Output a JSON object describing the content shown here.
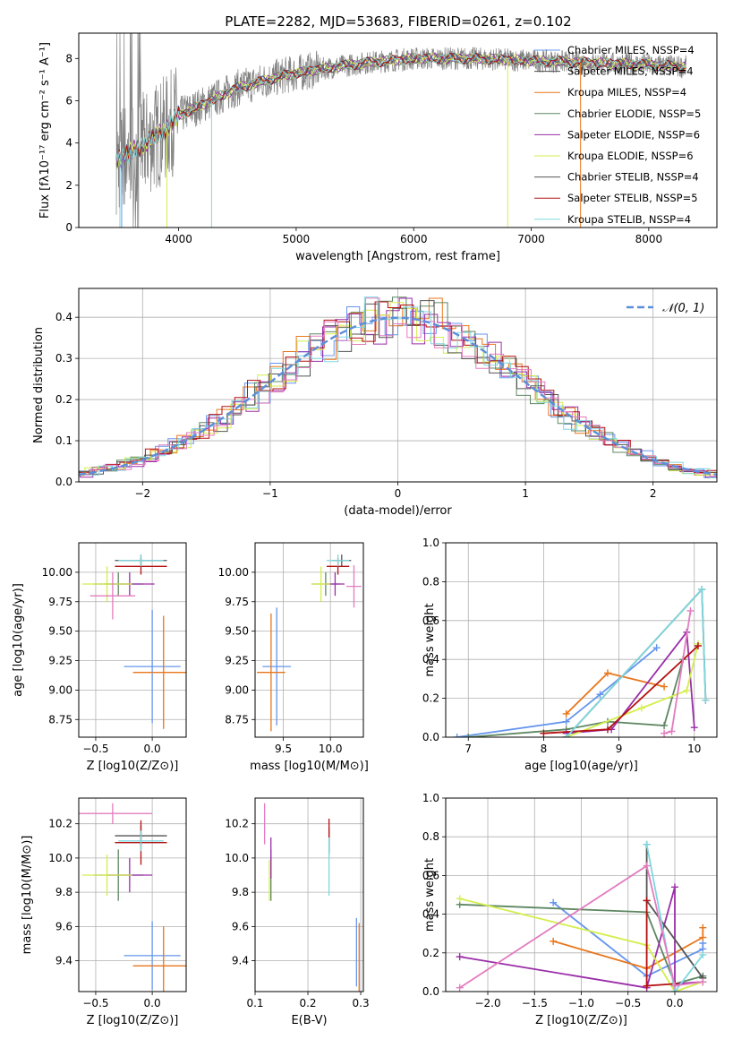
{
  "figure_title": "PLATE=2282, MJD=53683, FIBERID=0261, z=0.102",
  "colors": {
    "chabrier_miles": "#6495ed",
    "salpeter_miles": "#4a4a4a",
    "kroupa_miles": "#e8761c",
    "chabrier_elodie": "#5e8762",
    "salpeter_elodie": "#9a2ea8",
    "kroupa_elodie": "#d4ee4e",
    "chabrier_stelib": "#555555",
    "salpeter_stelib": "#b41010",
    "kroupa_stelib": "#7fd8df",
    "pink": "#e37cbf",
    "data_gray": "#808080",
    "normal_curve": "#5b8fd9"
  },
  "chart_data": [
    {
      "id": "spectrum",
      "type": "line",
      "xlabel": "wavelength [Angstrom, rest frame]",
      "ylabel": "Flux [fλ10⁻¹⁷ erg cm⁻² s⁻¹ A⁻¹]",
      "xlim": [
        3150,
        8580
      ],
      "ylim": [
        0,
        9.2
      ],
      "xticks": [
        "4000",
        "5000",
        "6000",
        "7000",
        "8000"
      ],
      "yticks": [
        "0",
        "2",
        "4",
        "6",
        "8"
      ],
      "xrange": [
        3470,
        8320
      ],
      "continuum": {
        "x": [
          3470,
          3700,
          3900,
          4000,
          4200,
          4500,
          4900,
          5200,
          5600,
          6000,
          6500,
          7000,
          7500,
          8000,
          8320
        ],
        "y": [
          3.2,
          3.9,
          4.7,
          5.3,
          5.8,
          6.6,
          7.2,
          7.5,
          7.8,
          8.0,
          8.0,
          7.9,
          7.8,
          7.7,
          7.6
        ]
      },
      "legend": [
        {
          "label": "Chabrier MILES, NSSP=4",
          "color_key": "chabrier_miles"
        },
        {
          "label": "Salpeter MILES, NSSP=4",
          "color_key": "salpeter_miles"
        },
        {
          "label": "Kroupa MILES, NSSP=4",
          "color_key": "kroupa_miles"
        },
        {
          "label": "Chabrier ELODIE, NSSP=5",
          "color_key": "chabrier_elodie"
        },
        {
          "label": "Salpeter ELODIE, NSSP=6",
          "color_key": "salpeter_elodie"
        },
        {
          "label": "Kroupa ELODIE, NSSP=6",
          "color_key": "kroupa_elodie"
        },
        {
          "label": "Chabrier STELIB, NSSP=4",
          "color_key": "chabrier_stelib"
        },
        {
          "label": "Salpeter STELIB, NSSP=5",
          "color_key": "salpeter_stelib"
        },
        {
          "label": "Kroupa STELIB, NSSP=4",
          "color_key": "kroupa_stelib"
        }
      ],
      "legend_placement": "right"
    },
    {
      "id": "residual-histogram",
      "type": "line",
      "xlabel": "(data-model)/error",
      "ylabel": "Normed distribution",
      "xlim": [
        -2.5,
        2.5
      ],
      "ylim": [
        0,
        0.47
      ],
      "xticks": [
        "-2",
        "-1",
        "0",
        "1",
        "2"
      ],
      "yticks": [
        "0.0",
        "0.1",
        "0.2",
        "0.3",
        "0.4"
      ],
      "grid": true,
      "legend": [
        {
          "label": "𝒩(0, 1)",
          "color_key": "normal_curve"
        }
      ],
      "legend_placement": "top-right",
      "series_colors": [
        "chabrier_miles",
        "kroupa_miles",
        "chabrier_elodie",
        "salpeter_elodie",
        "kroupa_elodie",
        "chabrier_stelib",
        "salpeter_stelib",
        "kroupa_stelib",
        "pink"
      ]
    },
    {
      "id": "age-vs-Z",
      "type": "scatter",
      "xlabel": "Z [log10(Z/Z⊙)]",
      "ylabel": "age  [log10(age/yr)]",
      "xlim": [
        -0.65,
        0.3
      ],
      "ylim": [
        8.6,
        10.25
      ],
      "xticks": [
        "-0.5",
        "0.0"
      ],
      "yticks": [
        "8.75",
        "9.00",
        "9.25",
        "9.50",
        "9.75",
        "10.00"
      ],
      "grid": true,
      "points": [
        {
          "x": 0.0,
          "y": 9.2,
          "xerr": 0.25,
          "yerr": 0.48,
          "color_key": "chabrier_miles"
        },
        {
          "x": 0.1,
          "y": 9.15,
          "xerr": 0.27,
          "yerr": 0.48,
          "color_key": "kroupa_miles"
        },
        {
          "x": -0.3,
          "y": 9.9,
          "xerr": 0.22,
          "yerr": 0.1,
          "color_key": "chabrier_elodie"
        },
        {
          "x": -0.2,
          "y": 9.9,
          "xerr": 0.22,
          "yerr": 0.1,
          "color_key": "salpeter_elodie"
        },
        {
          "x": -0.4,
          "y": 9.9,
          "xerr": 0.22,
          "yerr": 0.15,
          "color_key": "kroupa_elodie"
        },
        {
          "x": -0.1,
          "y": 10.1,
          "xerr": 0.23,
          "yerr": 0.05,
          "color_key": "chabrier_stelib"
        },
        {
          "x": -0.1,
          "y": 10.05,
          "xerr": 0.23,
          "yerr": 0.07,
          "color_key": "salpeter_stelib"
        },
        {
          "x": -0.1,
          "y": 10.1,
          "xerr": 0.2,
          "yerr": 0.05,
          "color_key": "kroupa_stelib"
        },
        {
          "x": -0.35,
          "y": 9.8,
          "xerr": 0.2,
          "yerr": 0.2,
          "color_key": "pink"
        }
      ]
    },
    {
      "id": "age-vs-mass",
      "type": "scatter",
      "xlabel": "mass [log10(M/M⊙)]",
      "ylabel": "",
      "xlim": [
        9.2,
        10.35
      ],
      "ylim": [
        8.6,
        10.25
      ],
      "xticks": [
        "9.5",
        "10.0"
      ],
      "yticks": [
        "8.75",
        "9.00",
        "9.25",
        "9.50",
        "9.75",
        "10.00"
      ],
      "grid": true,
      "points": [
        {
          "x": 9.43,
          "y": 9.2,
          "xerr": 0.15,
          "yerr": 0.5,
          "color_key": "chabrier_miles"
        },
        {
          "x": 9.37,
          "y": 9.15,
          "xerr": 0.15,
          "yerr": 0.5,
          "color_key": "kroupa_miles"
        },
        {
          "x": 9.95,
          "y": 9.9,
          "xerr": 0.15,
          "yerr": 0.1,
          "color_key": "chabrier_elodie"
        },
        {
          "x": 10.05,
          "y": 9.9,
          "xerr": 0.1,
          "yerr": 0.1,
          "color_key": "salpeter_elodie"
        },
        {
          "x": 9.9,
          "y": 9.9,
          "xerr": 0.1,
          "yerr": 0.15,
          "color_key": "kroupa_elodie"
        },
        {
          "x": 10.12,
          "y": 10.1,
          "xerr": 0.1,
          "yerr": 0.05,
          "color_key": "chabrier_stelib"
        },
        {
          "x": 10.08,
          "y": 10.05,
          "xerr": 0.12,
          "yerr": 0.07,
          "color_key": "salpeter_stelib"
        },
        {
          "x": 10.08,
          "y": 10.1,
          "xerr": 0.12,
          "yerr": 0.05,
          "color_key": "kroupa_stelib"
        },
        {
          "x": 10.25,
          "y": 9.88,
          "xerr": 0.08,
          "yerr": 0.18,
          "color_key": "pink"
        }
      ]
    },
    {
      "id": "mass-weight-vs-age",
      "type": "line",
      "xlabel": "age  [log10(age/yr)]",
      "ylabel": "mass weight",
      "xlim": [
        6.7,
        10.3
      ],
      "ylim": [
        0,
        1.0
      ],
      "xticks": [
        "7",
        "8",
        "9",
        "10"
      ],
      "yticks": [
        "0.0",
        "0.2",
        "0.4",
        "0.6",
        "0.8",
        "1.0"
      ],
      "grid": true,
      "series": [
        {
          "color_key": "chabrier_miles",
          "x": [
            6.85,
            8.3,
            8.75,
            9.5
          ],
          "y": [
            0.0,
            0.08,
            0.22,
            0.46
          ]
        },
        {
          "color_key": "kroupa_miles",
          "x": [
            8.3,
            8.85,
            9.6
          ],
          "y": [
            0.12,
            0.33,
            0.26
          ]
        },
        {
          "color_key": "chabrier_elodie",
          "x": [
            7.0,
            8.3,
            8.85,
            9.6,
            9.85
          ],
          "y": [
            0.0,
            0.04,
            0.08,
            0.06,
            0.4
          ]
        },
        {
          "color_key": "salpeter_elodie",
          "x": [
            8.3,
            8.9,
            9.9,
            10.0
          ],
          "y": [
            0.02,
            0.04,
            0.54,
            0.05
          ]
        },
        {
          "color_key": "kroupa_elodie",
          "x": [
            8.3,
            9.3,
            9.9,
            10.05
          ],
          "y": [
            0.0,
            0.15,
            0.24,
            0.48
          ]
        },
        {
          "color_key": "chabrier_stelib",
          "x": [
            8.3,
            10.1,
            10.15
          ],
          "y": [
            0.0,
            0.76,
            0.19
          ]
        },
        {
          "color_key": "salpeter_stelib",
          "x": [
            8.0,
            8.85,
            10.05
          ],
          "y": [
            0.02,
            0.04,
            0.47
          ]
        },
        {
          "color_key": "kroupa_stelib",
          "x": [
            8.3,
            10.1,
            10.15
          ],
          "y": [
            0.0,
            0.76,
            0.19
          ]
        },
        {
          "color_key": "pink",
          "x": [
            9.6,
            9.7,
            9.95
          ],
          "y": [
            0.02,
            0.03,
            0.65
          ]
        }
      ]
    },
    {
      "id": "mass-vs-Z",
      "type": "scatter",
      "xlabel": "Z [log10(Z/Z⊙)]",
      "ylabel": "mass [log10(M/M⊙)]",
      "xlim": [
        -0.65,
        0.3
      ],
      "ylim": [
        9.22,
        10.35
      ],
      "xticks": [
        "-0.5",
        "0.0"
      ],
      "yticks": [
        "9.4",
        "9.6",
        "9.8",
        "10.0",
        "10.2"
      ],
      "grid": true,
      "points": [
        {
          "x": 0.0,
          "y": 9.43,
          "xerr": 0.25,
          "yerr": 0.2,
          "color_key": "chabrier_miles"
        },
        {
          "x": 0.1,
          "y": 9.37,
          "xerr": 0.27,
          "yerr": 0.23,
          "color_key": "kroupa_miles"
        },
        {
          "x": -0.3,
          "y": 9.9,
          "xerr": 0.22,
          "yerr": 0.15,
          "color_key": "chabrier_elodie"
        },
        {
          "x": -0.2,
          "y": 9.9,
          "xerr": 0.2,
          "yerr": 0.1,
          "color_key": "salpeter_elodie"
        },
        {
          "x": -0.4,
          "y": 9.9,
          "xerr": 0.22,
          "yerr": 0.12,
          "color_key": "kroupa_elodie"
        },
        {
          "x": -0.1,
          "y": 10.13,
          "xerr": 0.23,
          "yerr": 0.06,
          "color_key": "chabrier_stelib"
        },
        {
          "x": -0.1,
          "y": 10.09,
          "xerr": 0.23,
          "yerr": 0.13,
          "color_key": "salpeter_stelib"
        },
        {
          "x": -0.1,
          "y": 10.1,
          "xerr": 0.2,
          "yerr": 0.06,
          "color_key": "kroupa_stelib"
        },
        {
          "x": -0.35,
          "y": 10.26,
          "xerr": 0.35,
          "yerr": 0.06,
          "color_key": "pink"
        }
      ]
    },
    {
      "id": "mass-vs-ebv",
      "type": "scatter",
      "xlabel": "E(B-V)",
      "ylabel": "",
      "xlim": [
        0.1,
        0.305
      ],
      "ylim": [
        9.22,
        10.35
      ],
      "xticks": [
        "0.1",
        "0.2",
        "0.3"
      ],
      "yticks": [
        "9.4",
        "9.6",
        "9.8",
        "10.0",
        "10.2"
      ],
      "grid": true,
      "points": [
        {
          "x": 0.292,
          "y": 9.45,
          "yerr": 0.2,
          "color_key": "chabrier_miles"
        },
        {
          "x": 0.297,
          "y": 9.42,
          "yerr": 0.2,
          "color_key": "kroupa_miles"
        },
        {
          "x": 0.13,
          "y": 9.9,
          "yerr": 0.15,
          "color_key": "chabrier_elodie"
        },
        {
          "x": 0.13,
          "y": 10.0,
          "yerr": 0.12,
          "color_key": "salpeter_elodie"
        },
        {
          "x": 0.127,
          "y": 9.87,
          "yerr": 0.12,
          "color_key": "kroupa_elodie"
        },
        {
          "x": 0.24,
          "y": 10.1,
          "yerr": 0.08,
          "color_key": "chabrier_stelib"
        },
        {
          "x": 0.24,
          "y": 10.13,
          "yerr": 0.1,
          "color_key": "salpeter_stelib"
        },
        {
          "x": 0.24,
          "y": 9.95,
          "yerr": 0.17,
          "color_key": "kroupa_stelib"
        },
        {
          "x": 0.118,
          "y": 10.2,
          "yerr": 0.12,
          "color_key": "pink"
        }
      ]
    },
    {
      "id": "mass-weight-vs-Z",
      "type": "line",
      "xlabel": "Z [log10(Z/Z⊙)]",
      "ylabel": "mass weight",
      "xlim": [
        -2.45,
        0.45
      ],
      "ylim": [
        0,
        1.0
      ],
      "xticks": [
        "-2.0",
        "-1.5",
        "-1.0",
        "-0.5",
        "0.0"
      ],
      "yticks": [
        "0.0",
        "0.2",
        "0.4",
        "0.6",
        "0.8",
        "1.0"
      ],
      "grid": true,
      "series": [
        {
          "color_key": "chabrier_miles",
          "x": [
            -1.3,
            -0.3,
            0.3,
            0.3
          ],
          "y": [
            0.46,
            0.08,
            0.22,
            0.25
          ]
        },
        {
          "color_key": "kroupa_miles",
          "x": [
            -1.3,
            -0.3,
            0.3,
            0.3
          ],
          "y": [
            0.26,
            0.12,
            0.28,
            0.33
          ]
        },
        {
          "color_key": "chabrier_elodie",
          "x": [
            -2.3,
            -0.3,
            0.0,
            0.3
          ],
          "y": [
            0.45,
            0.41,
            0.04,
            0.08
          ]
        },
        {
          "color_key": "salpeter_elodie",
          "x": [
            -2.3,
            -0.3,
            0.0,
            0.0,
            0.3
          ],
          "y": [
            0.18,
            0.02,
            0.54,
            0.04,
            0.05
          ]
        },
        {
          "color_key": "kroupa_elodie",
          "x": [
            -2.3,
            -0.3,
            0.0,
            0.3
          ],
          "y": [
            0.48,
            0.24,
            0.0,
            0.05
          ]
        },
        {
          "color_key": "chabrier_stelib",
          "x": [
            -0.3,
            -0.3,
            0.3
          ],
          "y": [
            0.76,
            0.47,
            0.07
          ]
        },
        {
          "color_key": "salpeter_stelib",
          "x": [
            -0.3,
            -0.3,
            0.0
          ],
          "y": [
            0.47,
            0.03,
            0.04
          ]
        },
        {
          "color_key": "kroupa_stelib",
          "x": [
            -0.3,
            0.0,
            0.3
          ],
          "y": [
            0.76,
            0.0,
            0.19
          ]
        },
        {
          "color_key": "pink",
          "x": [
            -2.3,
            -0.3,
            0.0,
            0.3
          ],
          "y": [
            0.02,
            0.65,
            0.03,
            0.05
          ]
        }
      ]
    }
  ]
}
